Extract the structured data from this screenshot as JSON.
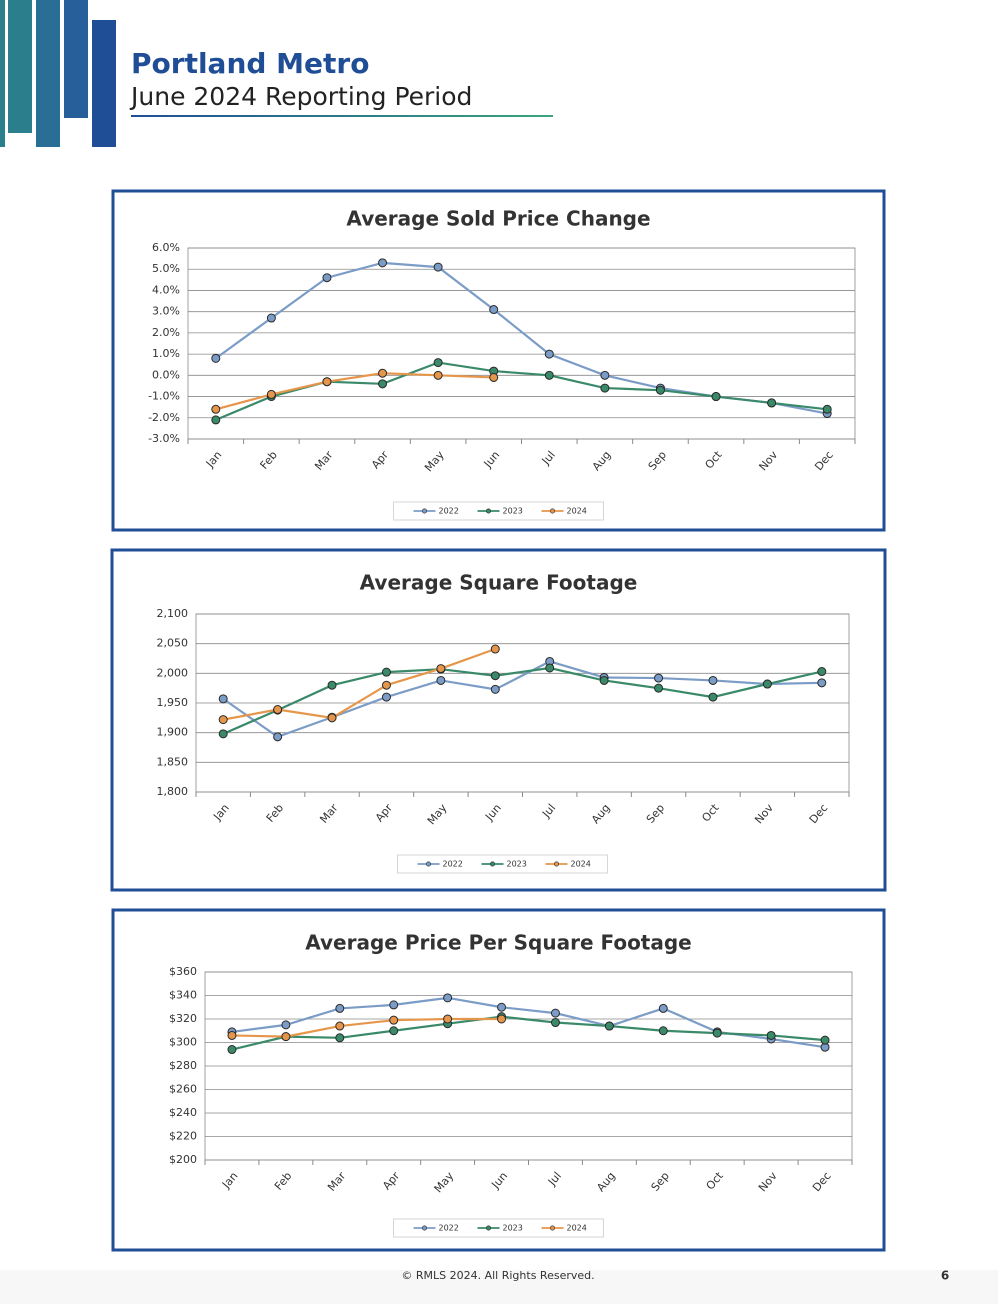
{
  "header": {
    "title": "Portland Metro",
    "subtitle": "June 2024 Reporting Period"
  },
  "chart_data": [
    {
      "type": "line",
      "title": "Average Sold Price Change",
      "categories": [
        "Jan",
        "Feb",
        "Mar",
        "Apr",
        "May",
        "Jun",
        "Jul",
        "Aug",
        "Sep",
        "Oct",
        "Nov",
        "Dec"
      ],
      "ylim": [
        -3,
        6
      ],
      "yticks": [
        {
          "value": -3,
          "label": "-3.0%"
        },
        {
          "value": -2,
          "label": "-2.0%"
        },
        {
          "value": -1,
          "label": "-1.0%"
        },
        {
          "value": 0,
          "label": "0.0%"
        },
        {
          "value": 1,
          "label": "1.0%"
        },
        {
          "value": 2,
          "label": "2.0%"
        },
        {
          "value": 3,
          "label": "3.0%"
        },
        {
          "value": 4,
          "label": "4.0%"
        },
        {
          "value": 5,
          "label": "5.0%"
        },
        {
          "value": 6,
          "label": "6.0%"
        }
      ],
      "grid": true,
      "legend": "bottom",
      "series": [
        {
          "name": "2022",
          "color": "#7b9cc7",
          "values": [
            0.8,
            2.7,
            4.6,
            5.3,
            5.1,
            3.1,
            1.0,
            0.0,
            -0.6,
            -1.0,
            -1.3,
            -1.8
          ]
        },
        {
          "name": "2023",
          "color": "#3a8a6a",
          "values": [
            -2.1,
            -1.0,
            -0.3,
            -0.4,
            0.6,
            0.2,
            0.0,
            -0.6,
            -0.7,
            -1.0,
            -1.3,
            -1.6
          ]
        },
        {
          "name": "2024",
          "color": "#e6964a",
          "values": [
            -1.6,
            -0.9,
            -0.3,
            0.1,
            0.0,
            -0.1,
            null,
            null,
            null,
            null,
            null,
            null
          ]
        }
      ]
    },
    {
      "type": "line",
      "title": "Average Square Footage",
      "categories": [
        "Jan",
        "Feb",
        "Mar",
        "Apr",
        "May",
        "Jun",
        "Jul",
        "Aug",
        "Sep",
        "Oct",
        "Nov",
        "Dec"
      ],
      "ylim": [
        1800,
        2100
      ],
      "yticks": [
        {
          "value": 1800,
          "label": "1,800"
        },
        {
          "value": 1850,
          "label": "1,850"
        },
        {
          "value": 1900,
          "label": "1,900"
        },
        {
          "value": 1950,
          "label": "1,950"
        },
        {
          "value": 2000,
          "label": "2,000"
        },
        {
          "value": 2050,
          "label": "2,050"
        },
        {
          "value": 2100,
          "label": "2,100"
        }
      ],
      "grid": true,
      "legend": "bottom",
      "series": [
        {
          "name": "2022",
          "color": "#7b9cc7",
          "values": [
            1957,
            1893,
            1926,
            1960,
            1988,
            1973,
            2020,
            1993,
            1992,
            1988,
            1982,
            1984
          ]
        },
        {
          "name": "2023",
          "color": "#3a8a6a",
          "values": [
            1898,
            1938,
            1980,
            2002,
            2007,
            1996,
            2009,
            1988,
            1975,
            1960,
            1982,
            2003
          ]
        },
        {
          "name": "2024",
          "color": "#e6964a",
          "values": [
            1922,
            1939,
            1925,
            1980,
            2008,
            2041,
            null,
            null,
            null,
            null,
            null,
            null
          ]
        }
      ]
    },
    {
      "type": "line",
      "title": "Average Price Per Square Footage",
      "categories": [
        "Jan",
        "Feb",
        "Mar",
        "Apr",
        "May",
        "Jun",
        "Jul",
        "Aug",
        "Sep",
        "Oct",
        "Nov",
        "Dec"
      ],
      "ylim": [
        200,
        360
      ],
      "yticks": [
        {
          "value": 200,
          "label": "$200"
        },
        {
          "value": 220,
          "label": "$220"
        },
        {
          "value": 240,
          "label": "$240"
        },
        {
          "value": 260,
          "label": "$260"
        },
        {
          "value": 280,
          "label": "$280"
        },
        {
          "value": 300,
          "label": "$300"
        },
        {
          "value": 320,
          "label": "$320"
        },
        {
          "value": 340,
          "label": "$340"
        },
        {
          "value": 360,
          "label": "$360"
        }
      ],
      "grid": true,
      "legend": "bottom",
      "series": [
        {
          "name": "2022",
          "color": "#7b9cc7",
          "values": [
            309,
            315,
            329,
            332,
            338,
            330,
            325,
            314,
            329,
            309,
            303,
            296
          ]
        },
        {
          "name": "2023",
          "color": "#3a8a6a",
          "values": [
            294,
            305,
            304,
            310,
            316,
            322,
            317,
            314,
            310,
            308,
            306,
            302
          ]
        },
        {
          "name": "2024",
          "color": "#e6964a",
          "values": [
            306,
            305,
            314,
            319,
            320,
            320,
            null,
            null,
            null,
            null,
            null,
            null
          ]
        }
      ]
    }
  ],
  "footer": {
    "copyright": "© RMLS 2024. All Rights Reserved.",
    "page": "6"
  }
}
